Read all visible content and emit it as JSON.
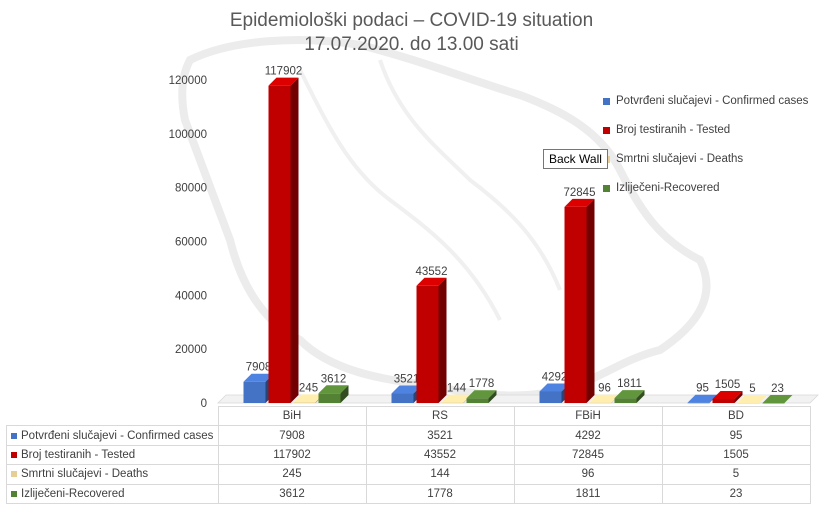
{
  "title": "Epidemiološki podaci – COVID-19 situation",
  "subtitle": "17.07.2020. do 13.00 sati",
  "tooltip": "Back Wall",
  "chart_data": {
    "type": "bar",
    "categories": [
      "BiH",
      "RS",
      "FBiH",
      "BD"
    ],
    "series": [
      {
        "name": "Potvrđeni slučajevi - Confirmed cases",
        "color": "#4472c4",
        "values": [
          7908,
          3521,
          4292,
          95
        ]
      },
      {
        "name": "Broj testiranih - Tested",
        "color": "#c00000",
        "values": [
          117902,
          43552,
          72845,
          1505
        ]
      },
      {
        "name": "Smrtni slučajevi - Deaths",
        "color": "#e6cf97",
        "values": [
          245,
          144,
          96,
          5
        ]
      },
      {
        "name": "Izliječeni-Recovered",
        "color": "#548235",
        "values": [
          3612,
          1778,
          1811,
          23
        ]
      }
    ],
    "ylim": [
      0,
      120000
    ],
    "yticks": [
      0,
      20000,
      40000,
      60000,
      80000,
      100000,
      120000
    ],
    "legend_position": "right",
    "data_table": true,
    "three_d": true
  }
}
